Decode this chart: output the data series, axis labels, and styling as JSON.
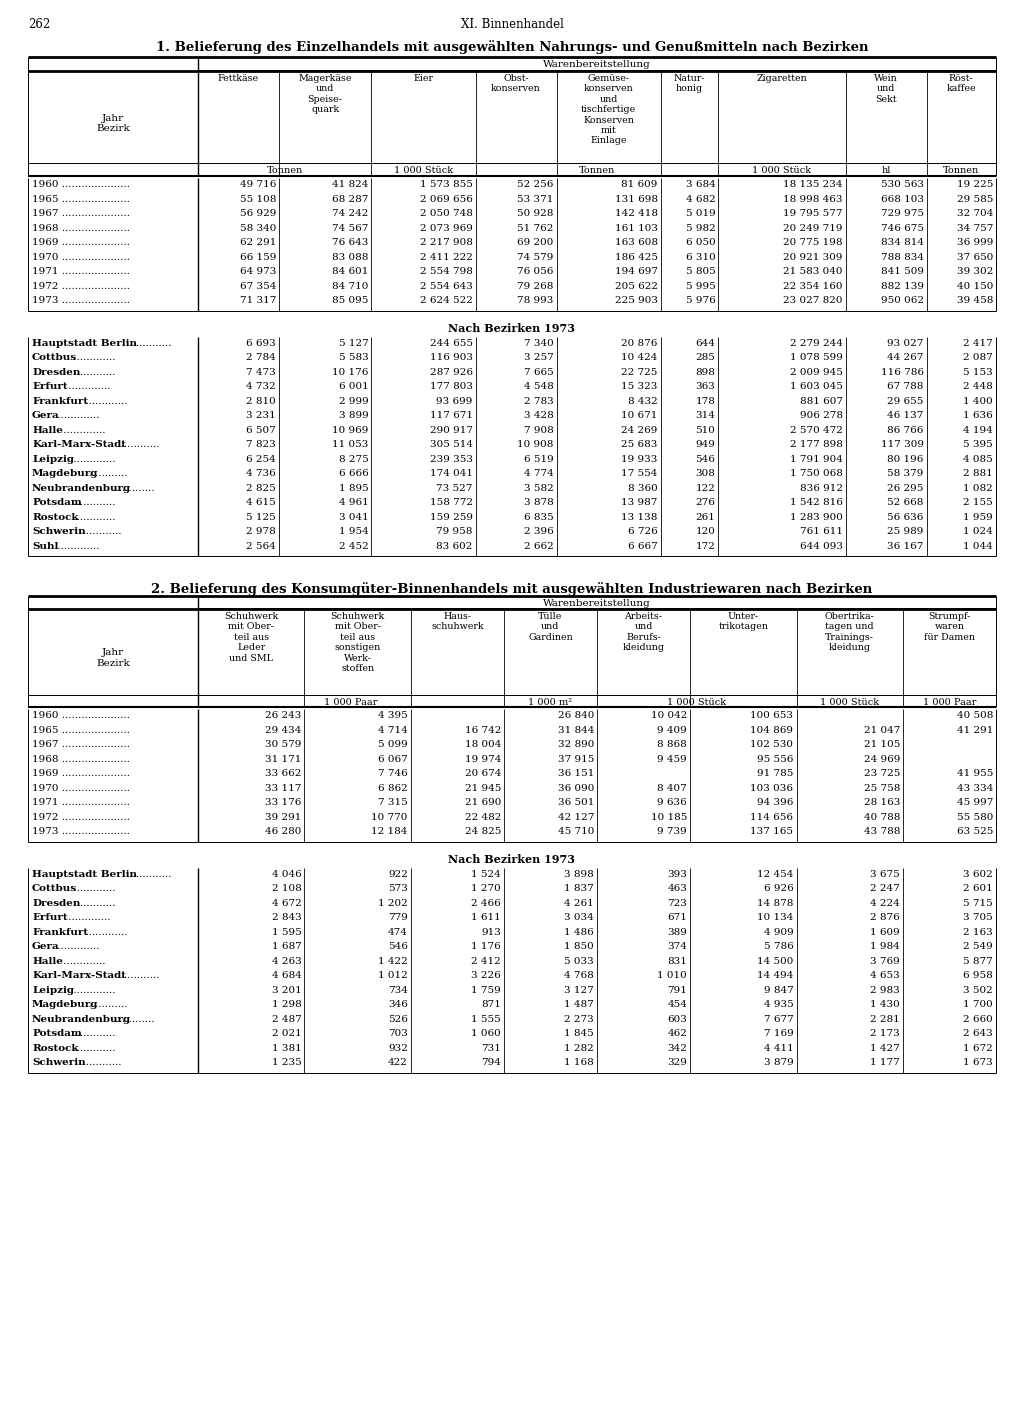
{
  "page_num": "262",
  "page_header": "XI. Binnenhandel",
  "table1_title": "1. Belieferung des Einzelhandels mit ausgewählten Nahrungs- und Genußmitteln nach Bezirken",
  "table1_warenbereitstellung": "Warenbereitstellung",
  "table1_years": [
    [
      "1960",
      "49 716",
      "41 824",
      "1 573 855",
      "52 256",
      "81 609",
      "3 684",
      "18 135 234",
      "530 563",
      "19 225"
    ],
    [
      "1965",
      "55 108",
      "68 287",
      "2 069 656",
      "53 371",
      "131 698",
      "4 682",
      "18 998 463",
      "668 103",
      "29 585"
    ],
    [
      "1967",
      "56 929",
      "74 242",
      "2 050 748",
      "50 928",
      "142 418",
      "5 019",
      "19 795 577",
      "729 975",
      "32 704"
    ],
    [
      "1968",
      "58 340",
      "74 567",
      "2 073 969",
      "51 762",
      "161 103",
      "5 982",
      "20 249 719",
      "746 675",
      "34 757"
    ],
    [
      "1969",
      "62 291",
      "76 643",
      "2 217 908",
      "69 200",
      "163 608",
      "6 050",
      "20 775 198",
      "834 814",
      "36 999"
    ],
    [
      "1970",
      "66 159",
      "83 088",
      "2 411 222",
      "74 579",
      "186 425",
      "6 310",
      "20 921 309",
      "788 834",
      "37 650"
    ],
    [
      "1971",
      "64 973",
      "84 601",
      "2 554 798",
      "76 056",
      "194 697",
      "5 805",
      "21 583 040",
      "841 509",
      "39 302"
    ],
    [
      "1972",
      "67 354",
      "84 710",
      "2 554 643",
      "79 268",
      "205 622",
      "5 995",
      "22 354 160",
      "882 139",
      "40 150"
    ],
    [
      "1973",
      "71 317",
      "85 095",
      "2 624 522",
      "78 993",
      "225 903",
      "5 976",
      "23 027 820",
      "950 062",
      "39 458"
    ]
  ],
  "table1_bezirke_header": "Nach Bezirken 1973",
  "table1_bezirke": [
    [
      "Hauptstadt Berlin",
      "6 693",
      "5 127",
      "244 655",
      "7 340",
      "20 876",
      "644",
      "2 279 244",
      "93 027",
      "2 417"
    ],
    [
      "Cottbus",
      "2 784",
      "5 583",
      "116 903",
      "3 257",
      "10 424",
      "285",
      "1 078 599",
      "44 267",
      "2 087"
    ],
    [
      "Dresden",
      "7 473",
      "10 176",
      "287 926",
      "7 665",
      "22 725",
      "898",
      "2 009 945",
      "116 786",
      "5 153"
    ],
    [
      "Erfurt",
      "4 732",
      "6 001",
      "177 803",
      "4 548",
      "15 323",
      "363",
      "1 603 045",
      "67 788",
      "2 448"
    ],
    [
      "Frankfurt",
      "2 810",
      "2 999",
      "93 699",
      "2 783",
      "8 432",
      "178",
      "881 607",
      "29 655",
      "1 400"
    ],
    [
      "Gera",
      "3 231",
      "3 899",
      "117 671",
      "3 428",
      "10 671",
      "314",
      "906 278",
      "46 137",
      "1 636"
    ],
    [
      "Halle",
      "6 507",
      "10 969",
      "290 917",
      "7 908",
      "24 269",
      "510",
      "2 570 472",
      "86 766",
      "4 194"
    ],
    [
      "Karl-Marx-Stadt",
      "7 823",
      "11 053",
      "305 514",
      "10 908",
      "25 683",
      "949",
      "2 177 898",
      "117 309",
      "5 395"
    ],
    [
      "Leipzig",
      "6 254",
      "8 275",
      "239 353",
      "6 519",
      "19 933",
      "546",
      "1 791 904",
      "80 196",
      "4 085"
    ],
    [
      "Magdeburg",
      "4 736",
      "6 666",
      "174 041",
      "4 774",
      "17 554",
      "308",
      "1 750 068",
      "58 379",
      "2 881"
    ],
    [
      "Neubrandenburg",
      "2 825",
      "1 895",
      "73 527",
      "3 582",
      "8 360",
      "122",
      "836 912",
      "26 295",
      "1 082"
    ],
    [
      "Potsdam",
      "4 615",
      "4 961",
      "158 772",
      "3 878",
      "13 987",
      "276",
      "1 542 816",
      "52 668",
      "2 155"
    ],
    [
      "Rostock",
      "5 125",
      "3 041",
      "159 259",
      "6 835",
      "13 138",
      "261",
      "1 283 900",
      "56 636",
      "1 959"
    ],
    [
      "Schwerin",
      "2 978",
      "1 954",
      "79 958",
      "2 396",
      "6 726",
      "120",
      "761 611",
      "25 989",
      "1 024"
    ],
    [
      "Suhl",
      "2 564",
      "2 452",
      "83 602",
      "2 662",
      "6 667",
      "172",
      "644 093",
      "36 167",
      "1 044"
    ]
  ],
  "table2_title": "2. Belieferung des Konsumgüter-Binnenhandels mit ausgewählten Industriewaren nach Bezirken",
  "table2_warenbereitstellung": "Warenbereitstellung",
  "table2_years": [
    [
      "1960",
      "26 243",
      "4 395",
      "",
      "26 840",
      "10 042",
      "100 653",
      "",
      "40 508"
    ],
    [
      "1965",
      "29 434",
      "4 714",
      "16 742",
      "31 844",
      "9 409",
      "104 869",
      "21 047",
      "41 291"
    ],
    [
      "1967",
      "30 579",
      "5 099",
      "18 004",
      "32 890",
      "8 868",
      "102 530",
      "21 105",
      ""
    ],
    [
      "1968",
      "31 171",
      "6 067",
      "19 974",
      "37 915",
      "9 459",
      "95 556",
      "24 969",
      ""
    ],
    [
      "1969",
      "33 662",
      "7 746",
      "20 674",
      "36 151",
      "",
      "91 785",
      "23 725",
      "41 955"
    ],
    [
      "1970",
      "33 117",
      "6 862",
      "21 945",
      "36 090",
      "8 407",
      "103 036",
      "25 758",
      "43 334"
    ],
    [
      "1971",
      "33 176",
      "7 315",
      "21 690",
      "36 501",
      "9 636",
      "94 396",
      "28 163",
      "45 997"
    ],
    [
      "1972",
      "39 291",
      "10 770",
      "22 482",
      "42 127",
      "10 185",
      "114 656",
      "40 788",
      "55 580"
    ],
    [
      "1973",
      "46 280",
      "12 184",
      "24 825",
      "45 710",
      "9 739",
      "137 165",
      "43 788",
      "63 525"
    ]
  ],
  "table2_bezirke_header": "Nach Bezirken 1973",
  "table2_bezirke": [
    [
      "Hauptstadt Berlin",
      "4 046",
      "922",
      "1 524",
      "3 898",
      "393",
      "12 454",
      "3 675",
      "3 602"
    ],
    [
      "Cottbus",
      "2 108",
      "573",
      "1 270",
      "1 837",
      "463",
      "6 926",
      "2 247",
      "2 601"
    ],
    [
      "Dresden",
      "4 672",
      "1 202",
      "2 466",
      "4 261",
      "723",
      "14 878",
      "4 224",
      "5 715"
    ],
    [
      "Erfurt",
      "2 843",
      "779",
      "1 611",
      "3 034",
      "671",
      "10 134",
      "2 876",
      "3 705"
    ],
    [
      "Frankfurt",
      "1 595",
      "474",
      "913",
      "1 486",
      "389",
      "4 909",
      "1 609",
      "2 163"
    ],
    [
      "Gera",
      "1 687",
      "546",
      "1 176",
      "1 850",
      "374",
      "5 786",
      "1 984",
      "2 549"
    ],
    [
      "Halle",
      "4 263",
      "1 422",
      "2 412",
      "5 033",
      "831",
      "14 500",
      "3 769",
      "5 877"
    ],
    [
      "Karl-Marx-Stadt",
      "4 684",
      "1 012",
      "3 226",
      "4 768",
      "1 010",
      "14 494",
      "4 653",
      "6 958"
    ],
    [
      "Leipzig",
      "3 201",
      "734",
      "1 759",
      "3 127",
      "791",
      "9 847",
      "2 983",
      "3 502"
    ],
    [
      "Magdeburg",
      "1 298",
      "346",
      "871",
      "1 487",
      "454",
      "4 935",
      "1 430",
      "1 700"
    ],
    [
      "Neubrandenburg",
      "2 487",
      "526",
      "1 555",
      "2 273",
      "603",
      "7 677",
      "2 281",
      "2 660"
    ],
    [
      "Potsdam",
      "2 021",
      "703",
      "1 060",
      "1 845",
      "462",
      "7 169",
      "2 173",
      "2 643"
    ],
    [
      "Rostock",
      "1 381",
      "932",
      "731",
      "1 282",
      "342",
      "4 411",
      "1 427",
      "1 672"
    ],
    [
      "Schwerin",
      "1 235",
      "422",
      "794",
      "1 168",
      "329",
      "3 879",
      "1 177",
      "1 673"
    ]
  ]
}
